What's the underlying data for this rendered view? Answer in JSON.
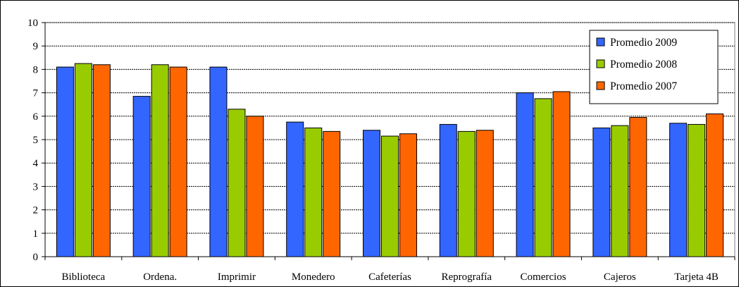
{
  "chart_data": {
    "type": "bar",
    "title": "",
    "xlabel": "",
    "ylabel": "",
    "ylim": [
      0,
      10
    ],
    "yticks": [
      "0",
      "1",
      "2",
      "3",
      "4",
      "5",
      "6",
      "7",
      "8",
      "9",
      "10"
    ],
    "grid": true,
    "legend_position": "top-right",
    "categories": [
      "Biblioteca",
      "Ordena.",
      "Imprimir",
      "Monedero",
      "Cafeterías",
      "Reprografía",
      "Comercios",
      "Cajeros",
      "Tarjeta 4B"
    ],
    "series": [
      {
        "name": "Promedio 2009",
        "color": "#3366FF",
        "values": [
          8.1,
          6.85,
          8.1,
          5.75,
          5.4,
          5.65,
          7.0,
          5.5,
          5.7
        ]
      },
      {
        "name": "Promedio 2008",
        "color": "#99CC00",
        "values": [
          8.25,
          8.2,
          6.3,
          5.5,
          5.15,
          5.35,
          6.75,
          5.6,
          5.65
        ]
      },
      {
        "name": "Promedio 2007",
        "color": "#FF6600",
        "values": [
          8.2,
          8.1,
          6.0,
          5.35,
          5.25,
          5.4,
          7.05,
          5.95,
          6.1
        ]
      }
    ]
  }
}
